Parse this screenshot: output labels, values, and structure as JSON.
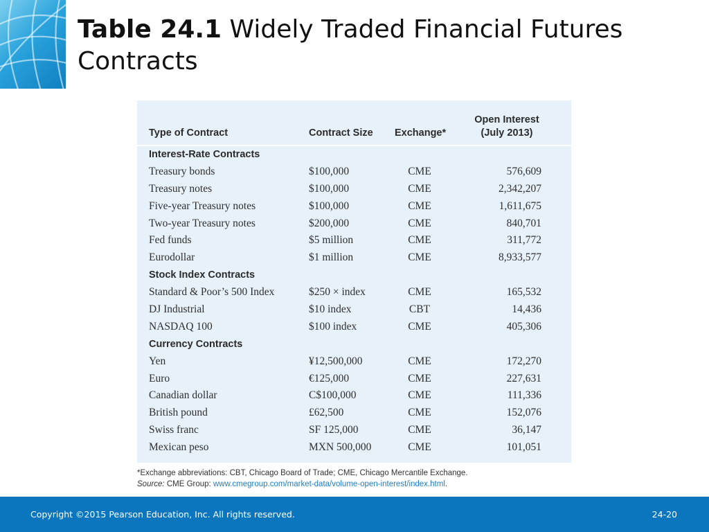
{
  "slide": {
    "title_bold": "Table 24.1",
    "title_rest": " Widely Traded Financial Futures Contracts"
  },
  "table": {
    "headers": {
      "type": "Type of Contract",
      "size": "Contract Size",
      "exchange": "Exchange*",
      "open_interest_line1": "Open Interest",
      "open_interest_line2": "(July 2013)"
    },
    "rows": [
      {
        "kind": "section",
        "label": "Interest-Rate Contracts"
      },
      {
        "kind": "data",
        "type": "Treasury bonds",
        "size": "$100,000",
        "exchange": "CME",
        "open_interest": "576,609"
      },
      {
        "kind": "data",
        "type": "Treasury notes",
        "size": "$100,000",
        "exchange": "CME",
        "open_interest": "2,342,207"
      },
      {
        "kind": "data",
        "type": "Five-year Treasury notes",
        "size": "$100,000",
        "exchange": "CME",
        "open_interest": "1,611,675"
      },
      {
        "kind": "data",
        "type": "Two-year Treasury notes",
        "size": "$200,000",
        "exchange": "CME",
        "open_interest": "840,701"
      },
      {
        "kind": "data",
        "type": "Fed funds",
        "size": "$5 million",
        "exchange": "CME",
        "open_interest": "311,772"
      },
      {
        "kind": "data",
        "type": "Eurodollar",
        "size": "$1 million",
        "exchange": "CME",
        "open_interest": "8,933,577"
      },
      {
        "kind": "section",
        "label": "Stock Index Contracts"
      },
      {
        "kind": "data",
        "type": "Standard & Poor’s 500 Index",
        "size": "$250 × index",
        "exchange": "CME",
        "open_interest": "165,532"
      },
      {
        "kind": "data",
        "type": "DJ Industrial",
        "size": "$10 index",
        "exchange": "CBT",
        "open_interest": "14,436"
      },
      {
        "kind": "data",
        "type": "NASDAQ 100",
        "size": "$100 index",
        "exchange": "CME",
        "open_interest": "405,306"
      },
      {
        "kind": "section",
        "label": "Currency Contracts"
      },
      {
        "kind": "data",
        "type": "Yen",
        "size": "¥12,500,000",
        "exchange": "CME",
        "open_interest": "172,270"
      },
      {
        "kind": "data",
        "type": "Euro",
        "size": "€125,000",
        "exchange": "CME",
        "open_interest": "227,631"
      },
      {
        "kind": "data",
        "type": "Canadian dollar",
        "size": "C$100,000",
        "exchange": "CME",
        "open_interest": "111,336"
      },
      {
        "kind": "data",
        "type": "British pound",
        "size": "£62,500",
        "exchange": "CME",
        "open_interest": "152,076"
      },
      {
        "kind": "data",
        "type": "Swiss franc",
        "size": "SF 125,000",
        "exchange": "CME",
        "open_interest": "36,147"
      },
      {
        "kind": "data",
        "type": "Mexican peso",
        "size": "MXN 500,000",
        "exchange": "CME",
        "open_interest": "101,051"
      }
    ]
  },
  "notes": {
    "footnote": "*Exchange abbreviations: CBT, Chicago Board of Trade; CME, Chicago Mercantile Exchange.",
    "source_label": "Source:",
    "source_text": " CME Group: ",
    "source_link": "www.cmegroup.com/market-data/volume-open-interest/index.html",
    "source_end": "."
  },
  "footer": {
    "copyright": "Copyright ©2015 Pearson Education, Inc. All rights reserved.",
    "page_number": "24-20"
  },
  "colors": {
    "accent": "#0b76bd",
    "panel": "#e7f1f9",
    "link": "#1c7ec4"
  },
  "icons": {
    "logo": "globe-lines-logo"
  }
}
